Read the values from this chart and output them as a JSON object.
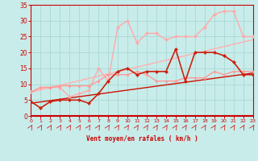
{
  "xlabel": "Vent moyen/en rafales ( km/h )",
  "background_color": "#c8ecea",
  "grid_color": "#a8d8d4",
  "xlim": [
    0,
    23
  ],
  "ylim": [
    0,
    35
  ],
  "xticks": [
    0,
    1,
    2,
    3,
    4,
    5,
    6,
    7,
    8,
    9,
    10,
    11,
    12,
    13,
    14,
    15,
    16,
    17,
    18,
    19,
    20,
    21,
    22,
    23
  ],
  "yticks": [
    0,
    5,
    10,
    15,
    20,
    25,
    30,
    35
  ],
  "line_lt_pink_straight": {
    "x": [
      0,
      23
    ],
    "y": [
      7.5,
      24
    ],
    "color": "#ffb0b0",
    "lw": 1.0
  },
  "line_dk_red_straight": {
    "x": [
      0,
      23
    ],
    "y": [
      4,
      13.5
    ],
    "color": "#cc1100",
    "lw": 1.0
  },
  "line_lt_pink_jagged": {
    "x": [
      0,
      1,
      2,
      3,
      4,
      5,
      6,
      7,
      8,
      9,
      10,
      11,
      12,
      13,
      14,
      15,
      16,
      17,
      18,
      19,
      20,
      21,
      22,
      23
    ],
    "y": [
      7.5,
      9,
      9,
      9,
      6,
      7,
      8,
      15,
      11,
      28,
      30,
      23,
      26,
      26,
      24,
      25,
      25,
      25,
      28,
      32,
      33,
      33,
      25,
      25
    ],
    "color": "#ffaaaa",
    "lw": 1.0,
    "ms": 2.5
  },
  "line_mid_pink_jagged": {
    "x": [
      0,
      1,
      2,
      3,
      4,
      5,
      6,
      7,
      8,
      9,
      10,
      11,
      12,
      13,
      14,
      15,
      16,
      17,
      18,
      19,
      20,
      21,
      22,
      23
    ],
    "y": [
      7.5,
      9,
      9,
      9.5,
      9.5,
      9.5,
      9.5,
      11,
      13,
      13,
      13,
      14,
      13,
      11,
      11,
      11,
      12,
      12,
      12,
      14,
      13,
      14,
      14,
      14
    ],
    "color": "#ff9999",
    "lw": 1.0,
    "ms": 2.0
  },
  "line_dk_red_jagged": {
    "x": [
      0,
      1,
      2,
      3,
      4,
      5,
      6,
      7,
      8,
      9,
      10,
      11,
      12,
      13,
      14,
      15,
      16,
      17,
      18,
      19,
      20,
      21,
      22,
      23
    ],
    "y": [
      4.5,
      2.5,
      4.5,
      5,
      5,
      5,
      4,
      7,
      11,
      14,
      15,
      13,
      14,
      14,
      14,
      21,
      11,
      20,
      20,
      20,
      19,
      17,
      13,
      13
    ],
    "color": "#cc2211",
    "lw": 1.2,
    "ms": 2.5
  }
}
